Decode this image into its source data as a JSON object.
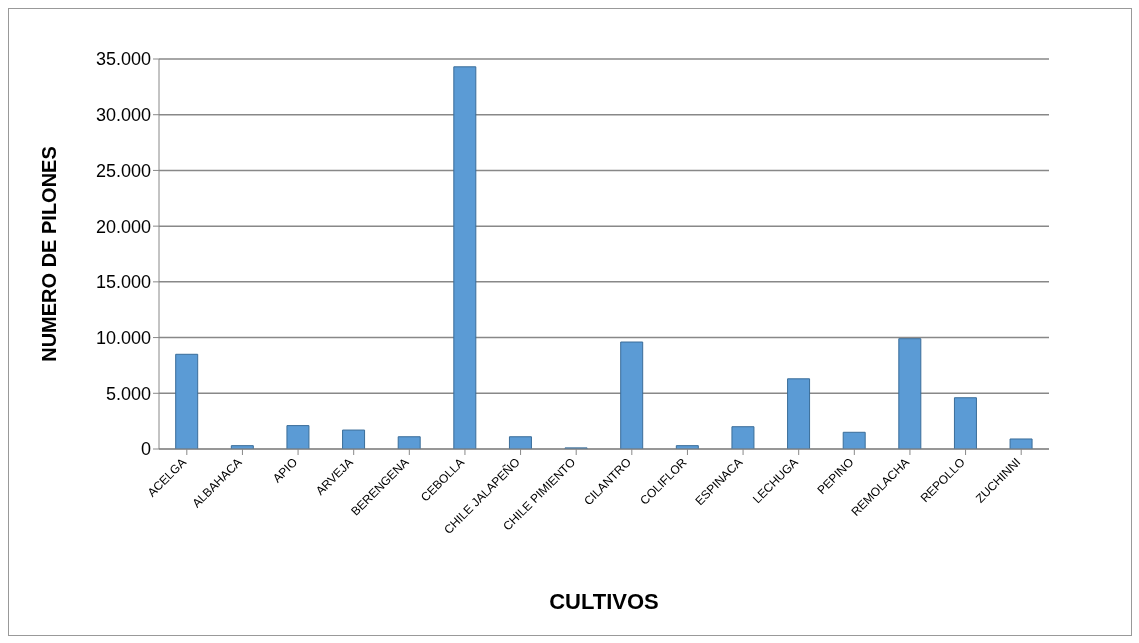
{
  "chart_data": {
    "type": "bar",
    "xlabel": "CULTIVOS",
    "ylabel": "NUMERO DE PILONES",
    "categories": [
      "ACELGA",
      "ALBAHACA",
      "APIO",
      "ARVEJA",
      "BERENGENA",
      "CEBOLLA",
      "CHILE JALAPEÑO",
      "CHILE PIMIENTO",
      "CILANTRO",
      "COLIFLOR",
      "ESPINACA",
      "LECHUGA",
      "PEPINO",
      "REMOLACHA",
      "REPOLLO",
      "ZUCHINNI"
    ],
    "values": [
      8500,
      300,
      2100,
      1700,
      1100,
      34300,
      1100,
      100,
      9600,
      300,
      2000,
      6300,
      1500,
      9900,
      4600,
      900
    ],
    "color": "#5b9bd5",
    "ylim": [
      0,
      35000
    ],
    "yticks": [
      {
        "value": 0,
        "label": "0"
      },
      {
        "value": 5000,
        "label": "5.000"
      },
      {
        "value": 10000,
        "label": "10.000"
      },
      {
        "value": 15000,
        "label": "15.000"
      },
      {
        "value": 20000,
        "label": "20.000"
      },
      {
        "value": 25000,
        "label": "25.000"
      },
      {
        "value": 30000,
        "label": "30.000"
      },
      {
        "value": 35000,
        "label": "35.000"
      }
    ],
    "grid": "y",
    "legend": false
  }
}
